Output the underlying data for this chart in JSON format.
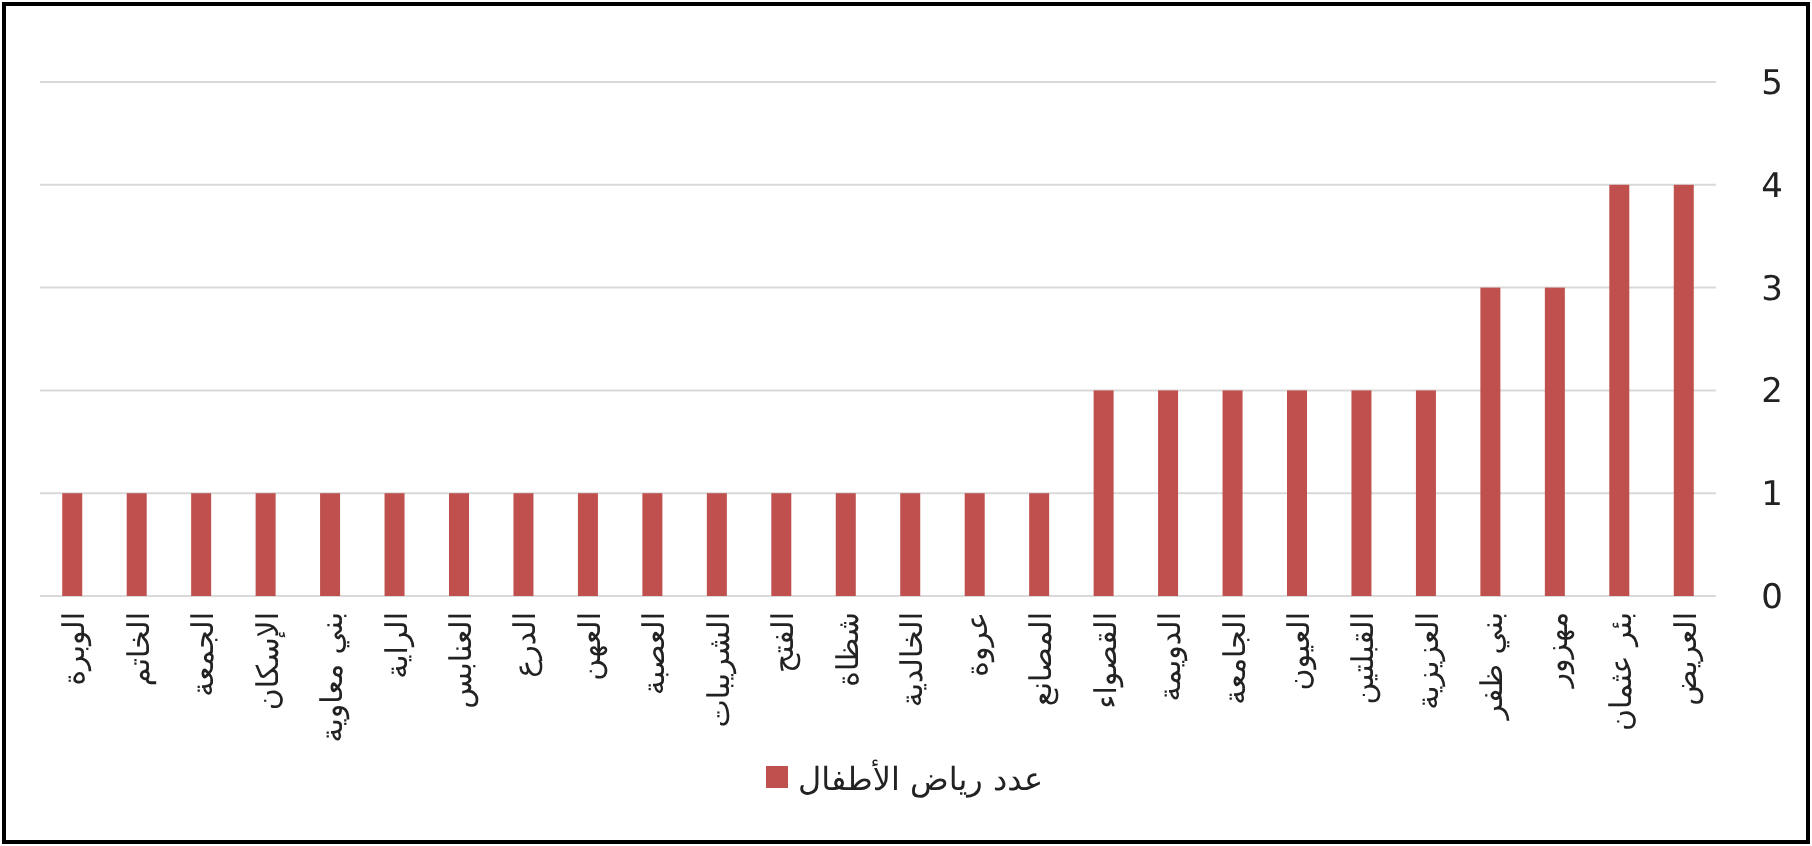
{
  "chart_data": {
    "type": "bar",
    "categories": [
      "الوبرة",
      "الخاتم",
      "الجمعة",
      "الإسكان",
      "بني معاوية",
      "الراية",
      "العنابس",
      "الدرع",
      "العهن",
      "العصبة",
      "الشريبات",
      "الفتح",
      "شظاة",
      "الخالدية",
      "عروة",
      "المصانع",
      "القصواء",
      "الدويمة",
      "الجامعة",
      "العيون",
      "القبلتين",
      "العزيزية",
      "بني ظفر",
      "مهزور",
      "بئر عثمان",
      "العريض"
    ],
    "series": [
      {
        "name": "عدد رياض الأطفال",
        "color": "#c0504d",
        "values": [
          1,
          1,
          1,
          1,
          1,
          1,
          1,
          1,
          1,
          1,
          1,
          1,
          1,
          1,
          1,
          1,
          2,
          2,
          2,
          2,
          2,
          2,
          3,
          3,
          4,
          4
        ]
      }
    ],
    "ylim": [
      0,
      5
    ],
    "yticks": [
      0,
      1,
      2,
      3,
      4,
      5
    ],
    "grid": "y",
    "legend": "bottom"
  }
}
